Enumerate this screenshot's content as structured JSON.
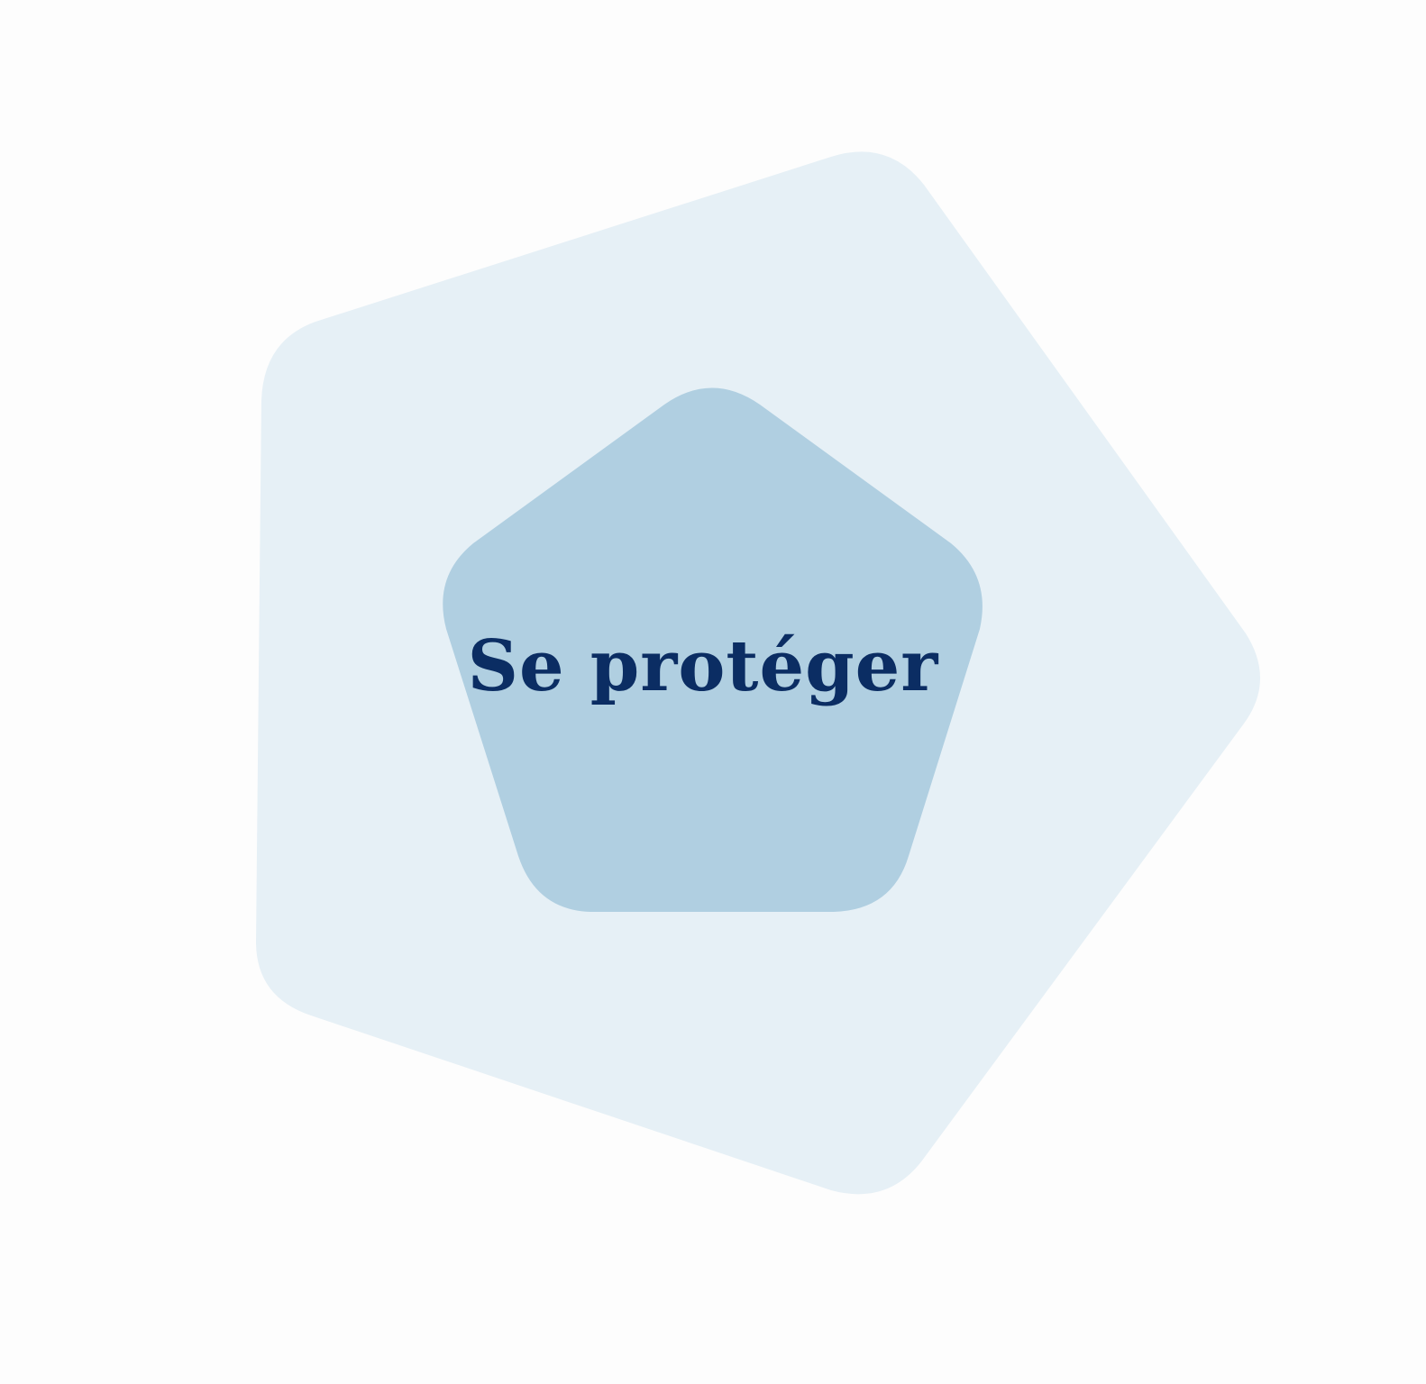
{
  "title": "Se protéger",
  "colors": {
    "background": "#fdfdfd",
    "outer_shape": "#e6f0f6",
    "inner_shape": "#b0cfe1",
    "text": "#0b2d63"
  }
}
